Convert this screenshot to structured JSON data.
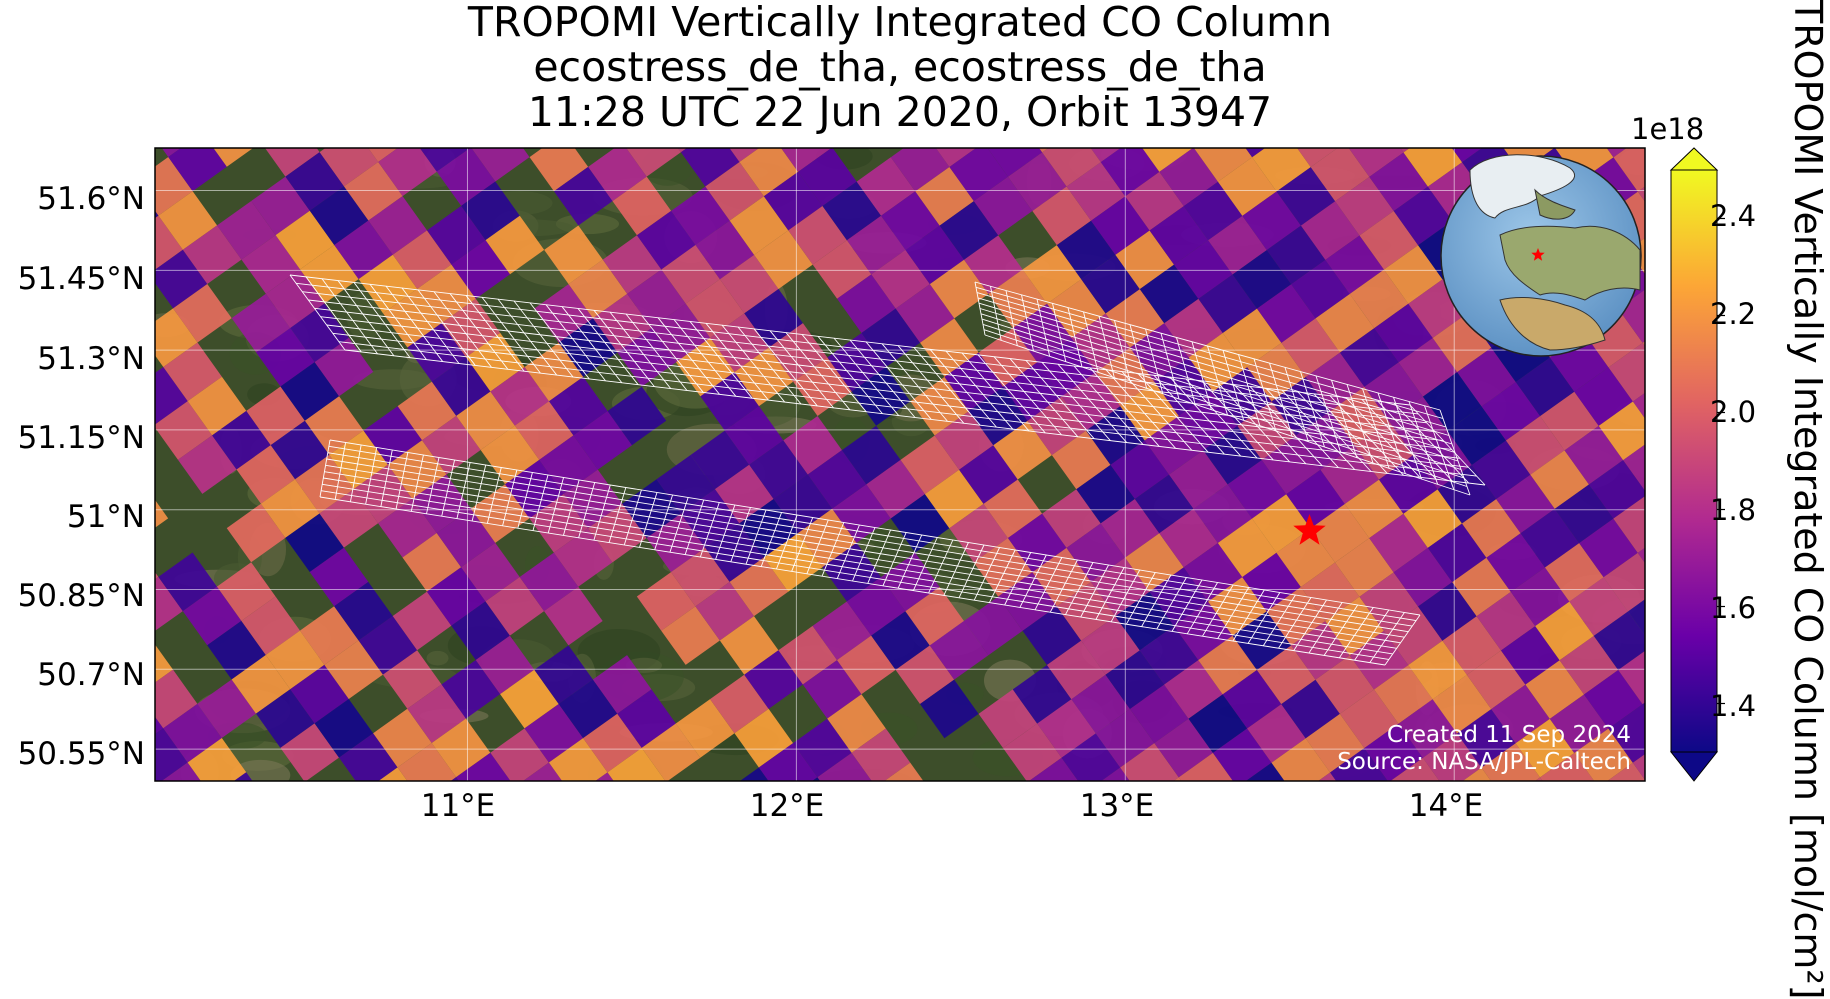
{
  "title": {
    "line1": "TROPOMI Vertically Integrated CO Column",
    "line2": "ecostress_de_tha, ecostress_de_tha",
    "line3": "11:28 UTC 22 Jun 2020, Orbit 13947"
  },
  "map": {
    "lon_range": [
      10.05,
      14.58
    ],
    "lat_range": [
      50.49,
      51.68
    ],
    "lat_ticks": [
      "51.6°N",
      "51.45°N",
      "51.3°N",
      "51.15°N",
      "51°N",
      "50.85°N",
      "50.7°N",
      "50.55°N"
    ],
    "lon_ticks": [
      "11°E",
      "12°E",
      "13°E",
      "14°E"
    ],
    "site_marker": {
      "lon": 13.56,
      "lat": 50.96,
      "color": "#ff0000",
      "icon": "star-icon"
    },
    "grid": true,
    "basemap": "satellite imagery",
    "overlay": "white footprint grids (target-mode swaths)"
  },
  "inset": {
    "type": "orthographic globe",
    "placement": "top-right",
    "marker_icon": "star-icon"
  },
  "credits": {
    "created": "Created 11 Sep 2024",
    "source": "Source: NASA/JPL-Caltech"
  },
  "colorbar": {
    "label": "TROPOMI Vertically Integrated CO Column [mol/cm²]",
    "exponent": "1e18",
    "ticks": [
      "2.4",
      "2.2",
      "2.0",
      "1.8",
      "1.6",
      "1.4"
    ],
    "range": [
      1.3,
      2.5
    ],
    "colormap": "plasma",
    "extend": "both"
  }
}
